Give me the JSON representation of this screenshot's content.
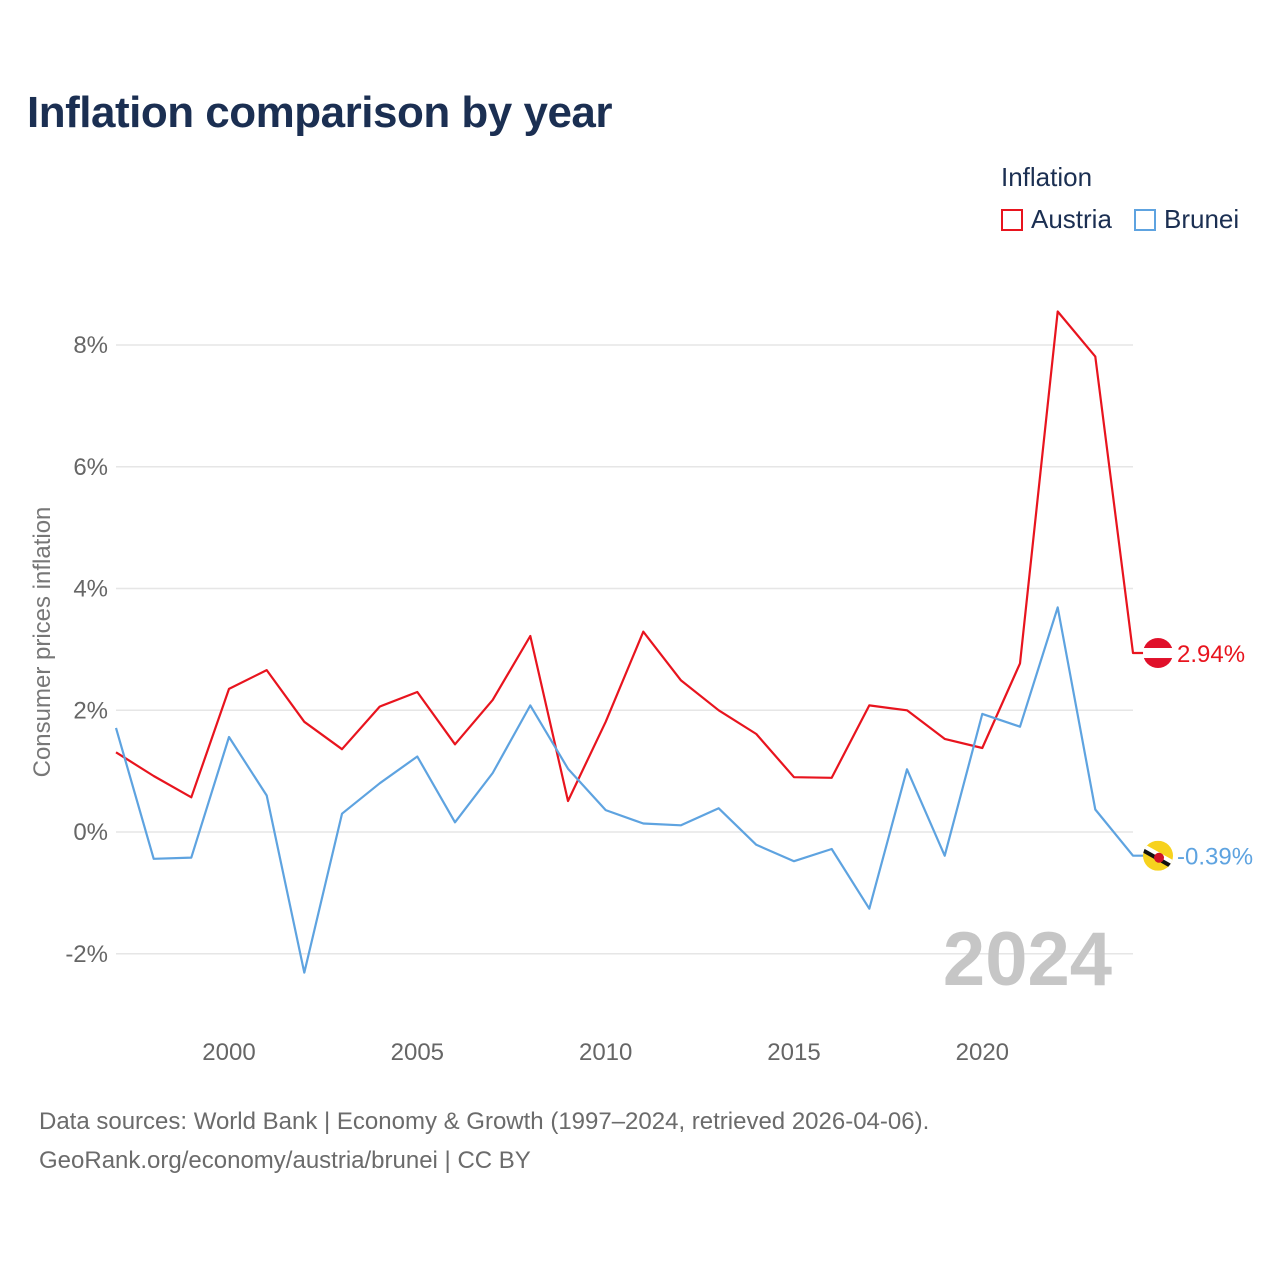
{
  "title": "Inflation comparison by year",
  "legend": {
    "title": "Inflation",
    "items": [
      {
        "name": "Austria",
        "color": "#e8141e"
      },
      {
        "name": "Brunei",
        "color": "#5ea3e0"
      }
    ]
  },
  "year_watermark": "2024",
  "source": {
    "line1": "Data sources: World Bank | Economy & Growth (1997–2024, retrieved 2026-04-06).",
    "line2": "GeoRank.org/economy/austria/brunei | CC BY"
  },
  "chart_data": {
    "type": "line",
    "title": "Inflation comparison by year",
    "xlabel": "",
    "ylabel": "Consumer prices inflation",
    "xlim": [
      1997,
      2024
    ],
    "ylim": [
      -2.9,
      9.0
    ],
    "x_ticks": [
      2000,
      2005,
      2010,
      2015,
      2020
    ],
    "x_tick_labels": [
      "2000",
      "2005",
      "2010",
      "2015",
      "2020"
    ],
    "y_ticks": [
      -2,
      0,
      2,
      4,
      6,
      8
    ],
    "y_tick_labels": [
      "-2%",
      "0%",
      "2%",
      "4%",
      "6%",
      "8%"
    ],
    "grid": true,
    "x": [
      1997,
      1998,
      1999,
      2000,
      2001,
      2002,
      2003,
      2004,
      2005,
      2006,
      2007,
      2008,
      2009,
      2010,
      2011,
      2012,
      2013,
      2014,
      2015,
      2016,
      2017,
      2018,
      2019,
      2020,
      2021,
      2022,
      2023,
      2024
    ],
    "series": [
      {
        "name": "Austria",
        "color": "#e8141e",
        "values": [
          1.31,
          0.92,
          0.57,
          2.35,
          2.66,
          1.81,
          1.36,
          2.06,
          2.3,
          1.44,
          2.17,
          3.22,
          0.51,
          1.81,
          3.29,
          2.49,
          2.0,
          1.61,
          0.9,
          0.89,
          2.08,
          2.0,
          1.53,
          1.38,
          2.77,
          8.55,
          7.81,
          2.94
        ],
        "end_label": "2.94%"
      },
      {
        "name": "Brunei",
        "color": "#5ea3e0",
        "values": [
          1.71,
          -0.44,
          -0.42,
          1.56,
          0.6,
          -2.31,
          0.3,
          0.8,
          1.24,
          0.16,
          0.97,
          2.08,
          1.04,
          0.36,
          0.14,
          0.11,
          0.39,
          -0.21,
          -0.48,
          -0.28,
          -1.26,
          1.03,
          -0.39,
          1.94,
          1.73,
          3.69,
          0.37,
          -0.39
        ],
        "end_label": "-0.39%"
      }
    ]
  }
}
